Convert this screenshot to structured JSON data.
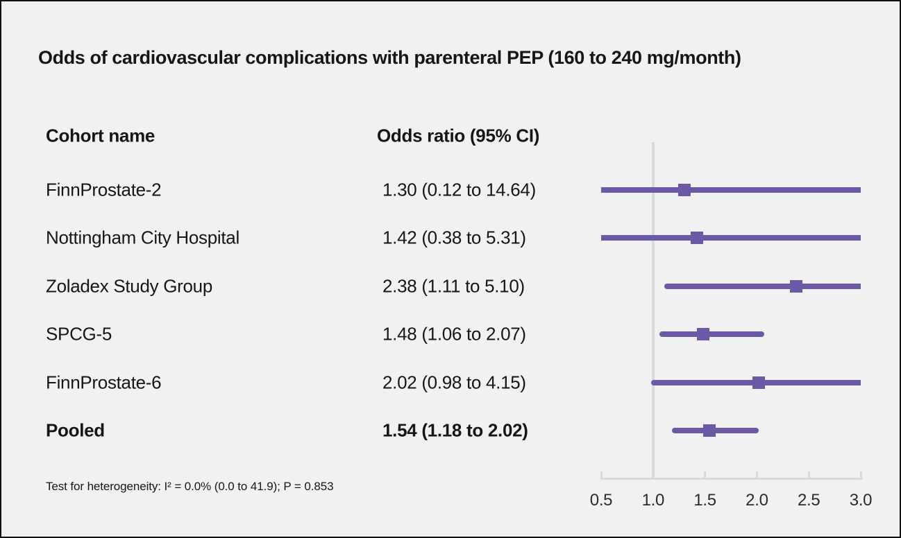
{
  "title": "Odds of cardiovascular complications with parenteral PEP (160 to 240 mg/month)",
  "columns": {
    "cohort": "Cohort name",
    "odds": "Odds ratio (95% CI)"
  },
  "footnote": "Test for heterogeneity: I² = 0.0% (0.0 to 41.9); P = 0.853",
  "colors": {
    "marker": "#6b59a6",
    "axis": "#d6dae1",
    "background": "#f2f1f1",
    "border": "#111111",
    "text": "#161616"
  },
  "chart_data": {
    "type": "scatter",
    "variant": "forest-plot",
    "title": "Odds of cardiovascular complications with parenteral PEP (160 to 240 mg/month)",
    "xlabel": "Odds ratio",
    "xlim": [
      0.5,
      3.0
    ],
    "x_ticks": [
      0.5,
      1.0,
      1.5,
      2.0,
      2.5,
      3.0
    ],
    "reference_x": 1.0,
    "grid": false,
    "legend": false,
    "points": [
      {
        "name": "FinnProstate-2",
        "or": 1.3,
        "lo": 0.12,
        "hi": 14.64,
        "label": "1.30 (0.12 to 14.64)",
        "bold": false
      },
      {
        "name": "Nottingham City Hospital",
        "or": 1.42,
        "lo": 0.38,
        "hi": 5.31,
        "label": "1.42 (0.38 to 5.31)",
        "bold": false
      },
      {
        "name": "Zoladex Study Group",
        "or": 2.38,
        "lo": 1.11,
        "hi": 5.1,
        "label": "2.38 (1.11 to 5.10)",
        "bold": false
      },
      {
        "name": "SPCG-5",
        "or": 1.48,
        "lo": 1.06,
        "hi": 2.07,
        "label": "1.48 (1.06 to 2.07)",
        "bold": false
      },
      {
        "name": "FinnProstate-6",
        "or": 2.02,
        "lo": 0.98,
        "hi": 4.15,
        "label": "2.02 (0.98 to 4.15)",
        "bold": false
      },
      {
        "name": "Pooled",
        "or": 1.54,
        "lo": 1.18,
        "hi": 2.02,
        "label": "1.54 (1.18 to 2.02)",
        "bold": true
      }
    ]
  }
}
